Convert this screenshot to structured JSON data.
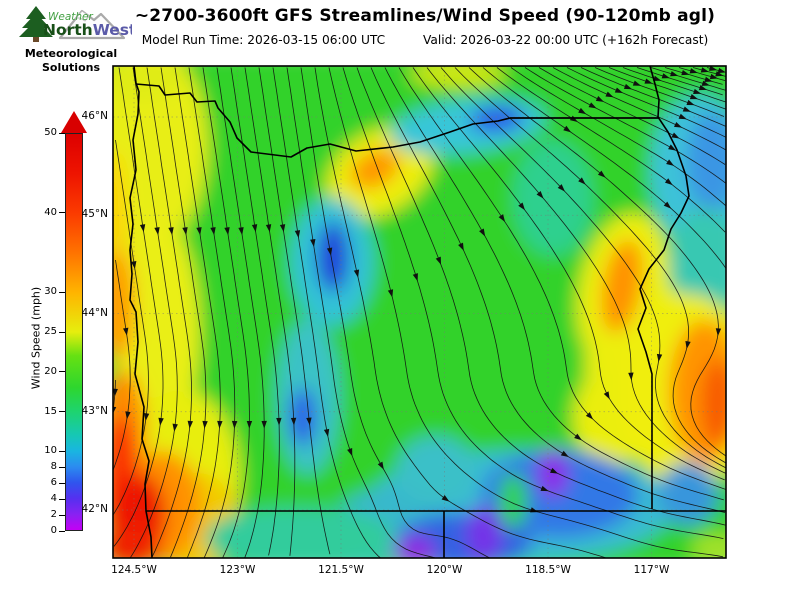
{
  "header": {
    "title": "~2700-3600ft GFS Streamlines/Wind Speed (90-120mb agl)",
    "model_run": "Model Run Time: 2026-03-15 06:00 UTC",
    "valid": "Valid: 2026-03-22 00:00 UTC  (+162h Forecast)"
  },
  "logo": {
    "word1": "Weather",
    "word2a": "North",
    "word2b": "West",
    "sub_line1": "Meteorological",
    "sub_line2": "Solutions",
    "colors": {
      "tree_green": "#1c5e20",
      "north_green": "#174f17",
      "west_blue": "#5a5aa8",
      "weather_green": "#44a044"
    }
  },
  "colorbar": {
    "label": "Wind Speed (mph)",
    "min": 0,
    "max": 50,
    "ticks": [
      0,
      2,
      4,
      6,
      8,
      10,
      15,
      20,
      25,
      30,
      40,
      50
    ],
    "arrow_color": "#d80000"
  },
  "axes": {
    "lat_tick_labels": [
      "46°N",
      "45°N",
      "44°N",
      "43°N",
      "42°N"
    ],
    "lat_tick_values": [
      46,
      45,
      44,
      43,
      42
    ],
    "lon_tick_labels": [
      "124.5°W",
      "123°W",
      "121.5°W",
      "120°W",
      "118.5°W",
      "117°W"
    ],
    "lon_tick_values": [
      -124.5,
      -123,
      -121.5,
      -120,
      -118.5,
      -117
    ]
  },
  "chart_data": {
    "type": "heatmap",
    "overlay": "streamlines with arrowheads",
    "region": "Oregon / Pacific Northwest (GFS model grid)",
    "title": "~2700-3600ft GFS Streamlines/Wind Speed (90-120mb agl)",
    "model_run_utc": "2026-03-15 06:00",
    "valid_utc": "2026-03-22 00:00",
    "forecast_hour": "+162h",
    "units": "mph",
    "lon_range": [
      -124.8,
      -115.9
    ],
    "lat_range": [
      41.5,
      46.5
    ],
    "grid": "dotted graticule every 1° latitude / 1.5° longitude",
    "colorbar_range": [
      0,
      50
    ],
    "colormap": [
      {
        "v": 0,
        "c": "#c400f4"
      },
      {
        "v": 2,
        "c": "#8822f2"
      },
      {
        "v": 4,
        "c": "#5530f0"
      },
      {
        "v": 6,
        "c": "#2f55ee"
      },
      {
        "v": 8,
        "c": "#2b8cf0"
      },
      {
        "v": 10,
        "c": "#19b6e0"
      },
      {
        "v": 12,
        "c": "#16c8b4"
      },
      {
        "v": 15,
        "c": "#1ed46e"
      },
      {
        "v": 18,
        "c": "#2ed62e"
      },
      {
        "v": 22,
        "c": "#66e112"
      },
      {
        "v": 25,
        "c": "#e6ee0e"
      },
      {
        "v": 30,
        "c": "#ffb400"
      },
      {
        "v": 35,
        "c": "#ff7300"
      },
      {
        "v": 40,
        "c": "#fb3b00"
      },
      {
        "v": 45,
        "c": "#ee1400"
      },
      {
        "v": 50,
        "c": "#dd0000"
      }
    ],
    "features": [
      {
        "name": "coastal wind max (SW Oregon coast)",
        "lon": -124.5,
        "lat": 42.1,
        "wind_mph": 45
      },
      {
        "name": "coastal yellow band along Pacific",
        "lon": -124.5,
        "lat": 44.8,
        "wind_mph": 25
      },
      {
        "name": "orange max near Columbia Gorge",
        "lon": -120.9,
        "lat": 45.45,
        "wind_mph": 32
      },
      {
        "name": "calm pocket north-central Oregon",
        "lon": -121.6,
        "lat": 44.55,
        "wind_mph": 6
      },
      {
        "name": "calm pocket on Columbia River border",
        "lon": -119.2,
        "lat": 45.95,
        "wind_mph": 7
      },
      {
        "name": "calm pocket NE corner (Snake River)",
        "lon": -116.2,
        "lat": 45.4,
        "wind_mph": 8
      },
      {
        "name": "orange band east-central Oregon",
        "lon": -117.45,
        "lat": 44.3,
        "wind_mph": 30
      },
      {
        "name": "orange max at east edge",
        "lon": -116.25,
        "lat": 43.2,
        "wind_mph": 33
      },
      {
        "name": "purple calm south-central",
        "lon": -118.45,
        "lat": 42.4,
        "wind_mph": 3
      },
      {
        "name": "purple calm near 42N/119.5W",
        "lon": -119.45,
        "lat": 41.9,
        "wind_mph": 4
      },
      {
        "name": "background flow",
        "lon": -121,
        "lat": 43.5,
        "wind_mph": 16
      }
    ],
    "flow_description": [
      "north-to-south flow along coast and western half",
      "northwest-to-southeast flow over northeast quadrant",
      "flow turns eastward along the 42N southern border",
      "small cyclonic eddy near 119.5W 41.8N"
    ],
    "map_overlays": [
      "Oregon state border",
      "Columbia & Snake River borders",
      "Pacific coastline",
      "46N and 42N straight borders",
      "120W California/Nevada border"
    ]
  }
}
